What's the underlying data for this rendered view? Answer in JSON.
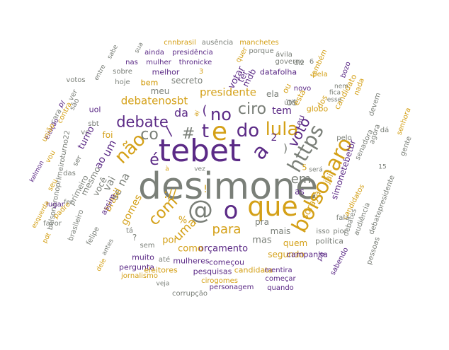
{
  "palette": {
    "gray": "#7a7f78",
    "gold": "#d4a017",
    "purple": "#5b2a86"
  },
  "words": [
    {
      "text": "desimone",
      "color": "gray"
    },
    {
      "text": "tebet",
      "color": "purple"
    },
    {
      "text": "que",
      "color": "gold"
    },
    {
      "text": "@",
      "color": "gray"
    },
    {
      "text": "o",
      "color": "purple"
    },
    {
      "text": "e",
      "color": "gold"
    },
    {
      "text": "a",
      "color": "purple"
    },
    {
      "text": "bolsonaro",
      "color": "gold"
    },
    {
      "text": "não",
      "color": "gold"
    },
    {
      "text": "t",
      "color": "purple"
    },
    {
      "text": "https",
      "color": "gray"
    },
    {
      "text": "lula",
      "color": "gold"
    },
    {
      "text": "do",
      "color": "purple"
    },
    {
      "text": "no",
      "color": "purple"
    },
    {
      "text": "ciro",
      "color": "gray"
    },
    {
      "text": "debate",
      "color": "purple"
    },
    {
      "text": "é",
      "color": "purple"
    },
    {
      "text": "co",
      "color": "gray"
    },
    {
      "text": "com",
      "color": "gold"
    },
    {
      "text": "voto",
      "color": "purple"
    },
    {
      "text": "em",
      "color": "gray"
    },
    {
      "text": "para",
      "color": "gold"
    },
    {
      "text": "uma",
      "color": "gold"
    },
    {
      "text": "tem",
      "color": "purple"
    },
    {
      "text": "um",
      "color": "purple"
    },
    {
      "text": "na",
      "color": "gray"
    },
    {
      "text": "da",
      "color": "purple"
    },
    {
      "text": "os",
      "color": "gray"
    },
    {
      "text": "presidente",
      "color": "gold"
    },
    {
      "text": "debatenosbt",
      "color": "gold"
    },
    {
      "text": "ao",
      "color": "purple"
    },
    {
      "text": "vai",
      "color": "gray"
    },
    {
      "text": "se",
      "color": "gray"
    },
    {
      "text": "gomes",
      "color": "gold"
    },
    {
      "text": "brasil",
      "color": "gold"
    },
    {
      "text": "soraya",
      "color": "gold"
    },
    {
      "text": "jair",
      "color": "gold"
    },
    {
      "text": "simonetebetbr",
      "color": "purple"
    },
    {
      "text": "mais",
      "color": "gray"
    },
    {
      "text": "pra",
      "color": "gray"
    },
    {
      "text": "as",
      "color": "purple"
    },
    {
      "text": "orçamento",
      "color": "purple"
    },
    {
      "text": "mas",
      "color": "gray"
    },
    {
      "text": "como",
      "color": "gold"
    },
    {
      "text": "por",
      "color": "gold"
    },
    {
      "text": "quem",
      "color": "gold"
    },
    {
      "text": "segundo",
      "color": "gold"
    },
    {
      "text": "política",
      "color": "gray"
    },
    {
      "text": "campanha",
      "color": "purple"
    },
    {
      "text": "ela",
      "color": "gray"
    },
    {
      "text": "ou",
      "color": "gold"
    },
    {
      "text": "está",
      "color": "gold"
    },
    {
      "text": "eu",
      "color": "purple"
    },
    {
      "text": "globo",
      "color": "gold"
    },
    {
      "text": "dos",
      "color": "gold"
    },
    {
      "text": "candidato",
      "color": "gold"
    },
    {
      "text": "candidatos",
      "color": "gold"
    },
    {
      "text": "pelo",
      "color": "gray"
    },
    {
      "text": "senadora",
      "color": "gray"
    },
    {
      "text": "agora",
      "color": "gray"
    },
    {
      "text": "devem",
      "color": "gray"
    },
    {
      "text": "votar",
      "color": "purple"
    },
    {
      "text": "ter",
      "color": "purple"
    },
    {
      "text": "mdb",
      "color": "purple"
    },
    {
      "text": "datafolha",
      "color": "purple"
    },
    {
      "text": "secreto",
      "color": "gray"
    },
    {
      "text": "meu",
      "color": "gray"
    },
    {
      "text": "melhor",
      "color": "purple"
    },
    {
      "text": "bem",
      "color": "gold"
    },
    {
      "text": "turno",
      "color": "purple"
    },
    {
      "text": "foi",
      "color": "gold"
    },
    {
      "text": "mesmo",
      "color": "gray"
    },
    {
      "text": "você",
      "color": "gray"
    },
    {
      "text": "assim",
      "color": "purple"
    },
    {
      "text": "primeiro",
      "color": "gray"
    },
    {
      "text": "bolsonaronoprimeiroturno22",
      "color": "gray"
    },
    {
      "text": "lugar",
      "color": "purple"
    },
    {
      "text": "padre",
      "color": "gold"
    },
    {
      "text": "brasileiro",
      "color": "gray"
    },
    {
      "text": "felipe",
      "color": "gray"
    },
    {
      "text": "antes",
      "color": "gray"
    },
    {
      "text": "sem",
      "color": "gray"
    },
    {
      "text": "muito",
      "color": "purple"
    },
    {
      "text": "pergunta",
      "color": "purple"
    },
    {
      "text": "eleitores",
      "color": "gold"
    },
    {
      "text": "jornalismo",
      "color": "gold"
    },
    {
      "text": "até",
      "color": "gray"
    },
    {
      "text": "mulheres",
      "color": "purple"
    },
    {
      "text": "começou",
      "color": "purple"
    },
    {
      "text": "pesquisas",
      "color": "purple"
    },
    {
      "text": "candidata",
      "color": "gold"
    },
    {
      "text": "cirogomes",
      "color": "gold"
    },
    {
      "text": "personagem",
      "color": "purple"
    },
    {
      "text": "mentira",
      "color": "purple"
    },
    {
      "text": "começar",
      "color": "purple"
    },
    {
      "text": "quando",
      "color": "purple"
    },
    {
      "text": "corrupção",
      "color": "gray"
    },
    {
      "text": "veja",
      "color": "gray"
    },
    {
      "text": "sabendo",
      "color": "purple"
    },
    {
      "text": "pessoas",
      "color": "gray"
    },
    {
      "text": "debates",
      "color": "gray"
    },
    {
      "text": "audiência",
      "color": "gray"
    },
    {
      "text": "debatepresidente",
      "color": "gray"
    },
    {
      "text": "isso",
      "color": "gray"
    },
    {
      "text": "pior",
      "color": "gray"
    },
    {
      "text": "pq",
      "color": "purple"
    },
    {
      "text": "será",
      "color": "gray"
    },
    {
      "text": "15",
      "color": "gray"
    },
    {
      "text": "5",
      "color": "gold"
    },
    {
      "text": "fala",
      "color": "gray"
    },
    {
      "text": "nem",
      "color": "gray"
    },
    {
      "text": "esse",
      "color": "gray"
    },
    {
      "text": "fica",
      "color": "gray"
    },
    {
      "text": "novo",
      "color": "purple"
    },
    {
      "text": "útil",
      "color": "gray"
    },
    {
      "text": "pela",
      "color": "gold"
    },
    {
      "text": "também",
      "color": "gold"
    },
    {
      "text": "nada",
      "color": "gold"
    },
    {
      "text": "bozo",
      "color": "purple"
    },
    {
      "text": "diz",
      "color": "gray"
    },
    {
      "text": "governo",
      "color": "gray"
    },
    {
      "text": "ávila",
      "color": "gray"
    },
    {
      "text": "porque",
      "color": "gray"
    },
    {
      "text": "manchetes",
      "color": "gold"
    },
    {
      "text": "ausência",
      "color": "gray"
    },
    {
      "text": "cnnbrasil",
      "color": "gold"
    },
    {
      "text": "ainda",
      "color": "purple"
    },
    {
      "text": "presidência",
      "color": "purple"
    },
    {
      "text": "nas",
      "color": "purple"
    },
    {
      "text": "mulher",
      "color": "purple"
    },
    {
      "text": "thronicke",
      "color": "purple"
    },
    {
      "text": "sobre",
      "color": "gray"
    },
    {
      "text": "hoje",
      "color": "gray"
    },
    {
      "text": "sua",
      "color": "gray"
    },
    {
      "text": "sabe",
      "color": "gray"
    },
    {
      "text": "votos",
      "color": "gray"
    },
    {
      "text": "entre",
      "color": "gray"
    },
    {
      "text": "ver",
      "color": "gray"
    },
    {
      "text": "são",
      "color": "gray"
    },
    {
      "text": "pl",
      "color": "purple"
    },
    {
      "text": "uol",
      "color": "purple"
    },
    {
      "text": "cara",
      "color": "gray"
    },
    {
      "text": "contra",
      "color": "gold"
    },
    {
      "text": "eleição",
      "color": "purple"
    },
    {
      "text": "união",
      "color": "gold"
    },
    {
      "text": "kelmon",
      "color": "purple"
    },
    {
      "text": "vou",
      "color": "gold"
    },
    {
      "text": "seu",
      "color": "gold"
    },
    {
      "text": "das",
      "color": "gray"
    },
    {
      "text": "fez",
      "color": "gray"
    },
    {
      "text": "favor",
      "color": "gray"
    },
    {
      "text": "pdt",
      "color": "gold"
    },
    {
      "text": "esquerda",
      "color": "gold"
    },
    {
      "text": "vc",
      "color": "gray"
    },
    {
      "text": "sbt",
      "color": "gray"
    },
    {
      "text": "ser",
      "color": "gray"
    },
    {
      "text": "tá",
      "color": "gray"
    },
    {
      "text": "dele",
      "color": "gold"
    },
    {
      "text": "senhora",
      "color": "gold"
    },
    {
      "text": "gente",
      "color": "gray"
    },
    {
      "text": "dá",
      "color": "gray"
    },
    {
      "text": "6",
      "color": "gray"
    },
    {
      "text": "quer",
      "color": "gold"
    },
    {
      "text": "3",
      "color": "gold"
    },
    {
      "text": "2",
      "color": "purple"
    },
    {
      "text": "!",
      "color": "gold"
    },
    {
      "text": "?",
      "color": "gray"
    },
    {
      "text": "/",
      "color": "purple"
    },
    {
      "text": "(",
      "color": "purple"
    },
    {
      "text": ")",
      "color": "gray"
    },
    {
      "text": "#",
      "color": "gray"
    },
    {
      "text": "://",
      "color": "gold"
    },
    {
      "text": "%",
      "color": "gold"
    },
    {
      "text": "vez",
      "color": "gray"
    },
    {
      "text": "à",
      "color": "gold"
    },
    {
      "text": "ai",
      "color": "gold"
    },
    {
      "text": "bem",
      "color": "gold"
    }
  ]
}
